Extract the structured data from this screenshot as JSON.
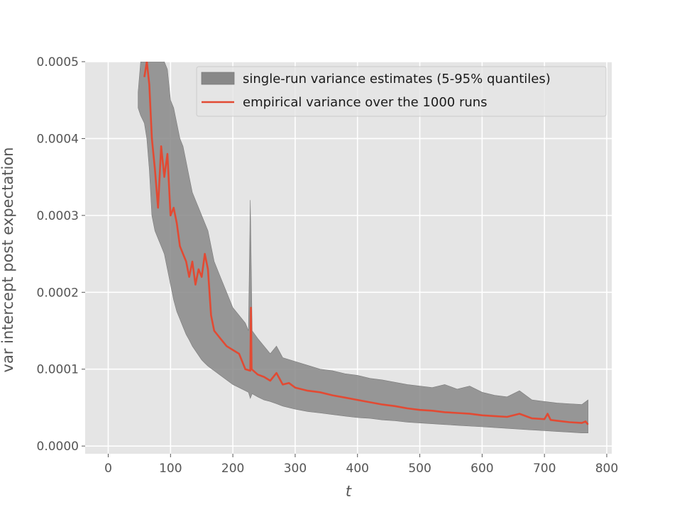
{
  "chart_data": {
    "type": "line",
    "xlabel": "t",
    "ylabel": "var intercept post expectation",
    "xlim": [
      -37,
      808
    ],
    "ylim": [
      -1e-05,
      0.0005
    ],
    "xticks": [
      0,
      100,
      200,
      300,
      400,
      500,
      600,
      700,
      800
    ],
    "yticks": [
      0.0,
      0.0001,
      0.0002,
      0.0003,
      0.0004,
      0.0005
    ],
    "xtick_labels": [
      "0",
      "100",
      "200",
      "300",
      "400",
      "500",
      "600",
      "700",
      "800"
    ],
    "ytick_labels": [
      "0.0000",
      "0.0001",
      "0.0002",
      "0.0003",
      "0.0004",
      "0.0005"
    ],
    "grid": true,
    "style": "ggplot",
    "legend_position": "top-right",
    "band": {
      "name": "single-run variance estimates (5-95% quantiles)",
      "color": "#888888",
      "x": [
        48,
        52,
        58,
        62,
        66,
        70,
        75,
        80,
        85,
        90,
        95,
        100,
        105,
        110,
        115,
        120,
        125,
        130,
        135,
        140,
        145,
        150,
        155,
        160,
        170,
        180,
        190,
        200,
        210,
        220,
        225,
        228,
        231,
        240,
        250,
        260,
        270,
        280,
        300,
        320,
        340,
        360,
        380,
        400,
        420,
        440,
        460,
        480,
        500,
        520,
        540,
        560,
        580,
        600,
        620,
        640,
        660,
        680,
        700,
        720,
        740,
        760,
        770
      ],
      "lower": [
        0.00044,
        0.00043,
        0.00042,
        0.0004,
        0.00036,
        0.0003,
        0.00028,
        0.00027,
        0.00026,
        0.00025,
        0.00023,
        0.00021,
        0.00019,
        0.000175,
        0.000165,
        0.000155,
        0.000145,
        0.000138,
        0.00013,
        0.000124,
        0.000118,
        0.000112,
        0.000108,
        0.000104,
        9.8e-05,
        9.2e-05,
        8.6e-05,
        8e-05,
        7.6e-05,
        7.2e-05,
        7e-05,
        6.2e-05,
        6.8e-05,
        6.4e-05,
        6e-05,
        5.8e-05,
        5.5e-05,
        5.2e-05,
        4.8e-05,
        4.5e-05,
        4.3e-05,
        4.1e-05,
        3.9e-05,
        3.7e-05,
        3.6e-05,
        3.4e-05,
        3.3e-05,
        3.1e-05,
        3e-05,
        2.9e-05,
        2.8e-05,
        2.7e-05,
        2.6e-05,
        2.5e-05,
        2.4e-05,
        2.3e-05,
        2.2e-05,
        2.1e-05,
        2e-05,
        1.9e-05,
        1.8e-05,
        1.7e-05,
        1.7e-05
      ],
      "upper": [
        0.00046,
        0.0005,
        0.0005,
        0.0005,
        0.0005,
        0.0005,
        0.0005,
        0.0005,
        0.0005,
        0.0005,
        0.00049,
        0.00045,
        0.00044,
        0.00042,
        0.0004,
        0.00039,
        0.00037,
        0.00035,
        0.00033,
        0.00032,
        0.00031,
        0.0003,
        0.00029,
        0.00028,
        0.00024,
        0.00022,
        0.0002,
        0.00018,
        0.00017,
        0.00016,
        0.00015,
        0.00032,
        0.00015,
        0.00014,
        0.00013,
        0.00012,
        0.00013,
        0.000115,
        0.00011,
        0.000105,
        0.0001,
        9.8e-05,
        9.4e-05,
        9.2e-05,
        8.8e-05,
        8.6e-05,
        8.3e-05,
        8e-05,
        7.8e-05,
        7.6e-05,
        8e-05,
        7.4e-05,
        7.8e-05,
        7e-05,
        6.6e-05,
        6.4e-05,
        7.2e-05,
        6e-05,
        5.8e-05,
        5.6e-05,
        5.5e-05,
        5.4e-05,
        6e-05
      ]
    },
    "series": [
      {
        "name": "empirical variance over the 1000 runs",
        "color": "#e24a33",
        "x": [
          58,
          62,
          66,
          70,
          75,
          80,
          85,
          90,
          95,
          100,
          105,
          110,
          115,
          120,
          125,
          130,
          135,
          140,
          145,
          150,
          155,
          160,
          165,
          170,
          180,
          190,
          200,
          210,
          220,
          228,
          229,
          230,
          240,
          250,
          260,
          270,
          280,
          290,
          300,
          320,
          340,
          360,
          380,
          400,
          420,
          440,
          460,
          480,
          500,
          520,
          540,
          560,
          580,
          600,
          620,
          640,
          660,
          680,
          700,
          705,
          710,
          720,
          740,
          760,
          766,
          770
        ],
        "y": [
          0.00048,
          0.0005,
          0.00047,
          0.0004,
          0.00036,
          0.00031,
          0.00039,
          0.00035,
          0.00038,
          0.0003,
          0.00031,
          0.00029,
          0.00026,
          0.00025,
          0.00024,
          0.00022,
          0.00024,
          0.00021,
          0.00023,
          0.00022,
          0.00025,
          0.00023,
          0.00017,
          0.00015,
          0.00014,
          0.00013,
          0.000125,
          0.00012,
          0.0001,
          9.8e-05,
          0.00018,
          0.0001,
          9.3e-05,
          9e-05,
          8.5e-05,
          9.5e-05,
          8e-05,
          8.2e-05,
          7.6e-05,
          7.2e-05,
          7e-05,
          6.6e-05,
          6.3e-05,
          6e-05,
          5.7e-05,
          5.4e-05,
          5.2e-05,
          4.9e-05,
          4.7e-05,
          4.6e-05,
          4.4e-05,
          4.3e-05,
          4.2e-05,
          4e-05,
          3.9e-05,
          3.8e-05,
          4.2e-05,
          3.6e-05,
          3.5e-05,
          4.2e-05,
          3.4e-05,
          3.3e-05,
          3.1e-05,
          3e-05,
          3.2e-05,
          2.8e-05
        ]
      }
    ]
  }
}
